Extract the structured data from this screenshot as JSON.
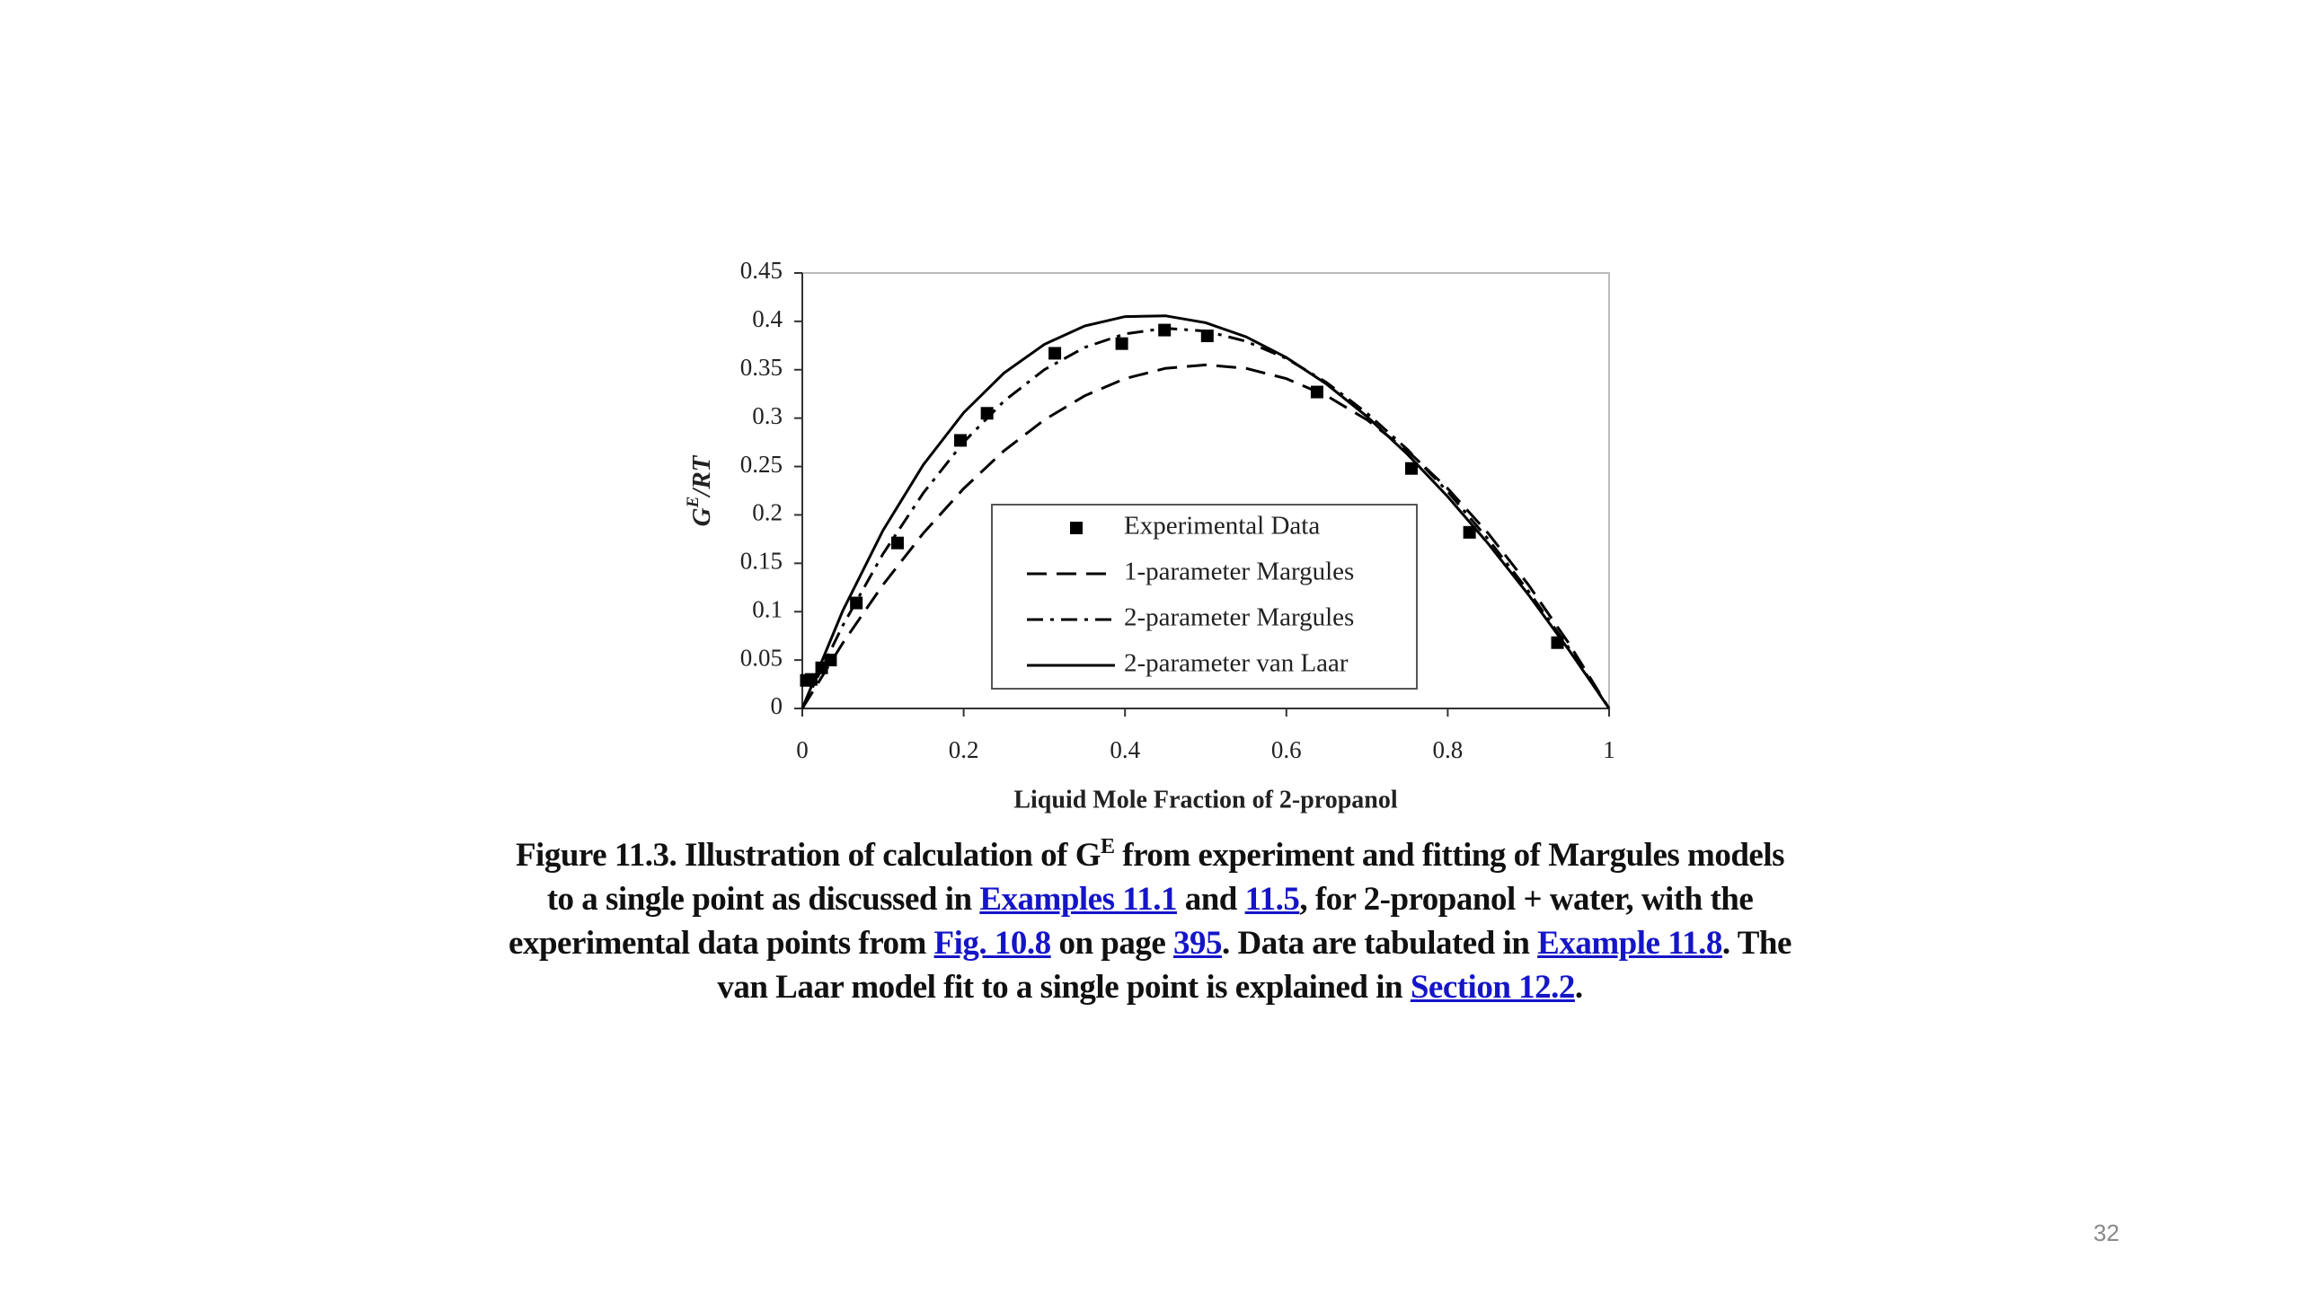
{
  "chart_data": {
    "type": "line",
    "x_label": "Liquid Mole Fraction of 2-propanol",
    "y_label": {
      "base": "G",
      "sup": "E",
      "rest": "/RT"
    },
    "xlim": [
      0,
      1
    ],
    "xticks": [
      0,
      0.2,
      0.4,
      0.6,
      0.8,
      1
    ],
    "ylim": [
      0,
      0.45
    ],
    "yticks": [
      0,
      0.05,
      0.1,
      0.15,
      0.2,
      0.25,
      0.3,
      0.35,
      0.4,
      0.45
    ],
    "grid": false,
    "legend": "center",
    "series": [
      {
        "name": "Experimental Data",
        "color": "#000000",
        "style": "marker",
        "x": [
          0.005,
          0.011,
          0.024,
          0.035,
          0.067,
          0.118,
          0.196,
          0.229,
          0.313,
          0.396,
          0.449,
          0.502,
          0.638,
          0.755,
          0.827,
          0.936
        ],
        "values": [
          0.029,
          0.03,
          0.042,
          0.05,
          0.109,
          0.171,
          0.277,
          0.305,
          0.367,
          0.377,
          0.391,
          0.385,
          0.327,
          0.248,
          0.182,
          0.068
        ]
      },
      {
        "name": "1-parameter Margules",
        "color": "#000000",
        "style": "dashed",
        "x": [
          0,
          0.05,
          0.1,
          0.15,
          0.2,
          0.25,
          0.3,
          0.35,
          0.4,
          0.45,
          0.5,
          0.55,
          0.6,
          0.65,
          0.7,
          0.75,
          0.8,
          0.85,
          0.9,
          0.95,
          1
        ],
        "values": [
          0,
          0.0674,
          0.1278,
          0.1811,
          0.2272,
          0.2663,
          0.2982,
          0.3231,
          0.3408,
          0.3515,
          0.355,
          0.3515,
          0.3408,
          0.3231,
          0.2982,
          0.2663,
          0.2272,
          0.1811,
          0.1278,
          0.0674,
          0
        ]
      },
      {
        "name": "2-parameter Margules",
        "color": "#000000",
        "style": "dashdot",
        "x": [
          0,
          0.05,
          0.1,
          0.15,
          0.2,
          0.25,
          0.3,
          0.35,
          0.4,
          0.45,
          0.5,
          0.55,
          0.6,
          0.65,
          0.7,
          0.75,
          0.8,
          0.85,
          0.9,
          0.95,
          1
        ],
        "values": [
          0,
          0.0855,
          0.1597,
          0.2227,
          0.2752,
          0.3176,
          0.3501,
          0.3731,
          0.3871,
          0.3928,
          0.39,
          0.3794,
          0.3617,
          0.3367,
          0.3051,
          0.2676,
          0.224,
          0.1751,
          0.1212,
          0.0627,
          0
        ]
      },
      {
        "name": "2-parameter van Laar",
        "color": "#000000",
        "style": "solid",
        "x": [
          0,
          0.05,
          0.1,
          0.15,
          0.2,
          0.25,
          0.3,
          0.35,
          0.4,
          0.45,
          0.5,
          0.55,
          0.6,
          0.65,
          0.7,
          0.75,
          0.8,
          0.85,
          0.9,
          0.95,
          1
        ],
        "values": [
          0,
          0.1007,
          0.184,
          0.2518,
          0.3056,
          0.3466,
          0.3762,
          0.3953,
          0.4049,
          0.4057,
          0.3986,
          0.384,
          0.3626,
          0.335,
          0.3016,
          0.2627,
          0.2189,
          0.1704,
          0.1176,
          0.0607,
          0
        ]
      }
    ]
  },
  "caption": {
    "lines": [
      [
        {
          "text": "Figure 11.3. Illustration of calculation of G",
          "style": "plain"
        },
        {
          "text": "E",
          "style": "sup"
        },
        {
          "text": " from experiment and fitting of Margules models",
          "style": "plain"
        }
      ],
      [
        {
          "text": "to a single point as discussed in ",
          "style": "plain"
        },
        {
          "text": "Examples 11.1",
          "style": "link"
        },
        {
          "text": " and ",
          "style": "plain"
        },
        {
          "text": "11.5",
          "style": "link"
        },
        {
          "text": ", for 2-propanol + water, with the",
          "style": "plain"
        }
      ],
      [
        {
          "text": "experimental data points from ",
          "style": "plain"
        },
        {
          "text": "Fig. 10.8",
          "style": "link"
        },
        {
          "text": " on page ",
          "style": "plain"
        },
        {
          "text": "395",
          "style": "link"
        },
        {
          "text": ". Data are tabulated in ",
          "style": "plain"
        },
        {
          "text": "Example 11.8",
          "style": "link"
        },
        {
          "text": ". The",
          "style": "plain"
        }
      ],
      [
        {
          "text": "van Laar model fit to a single point is explained in ",
          "style": "plain"
        },
        {
          "text": "Section 12.2",
          "style": "link"
        },
        {
          "text": ".",
          "style": "plain"
        }
      ]
    ]
  },
  "page_number": "32"
}
